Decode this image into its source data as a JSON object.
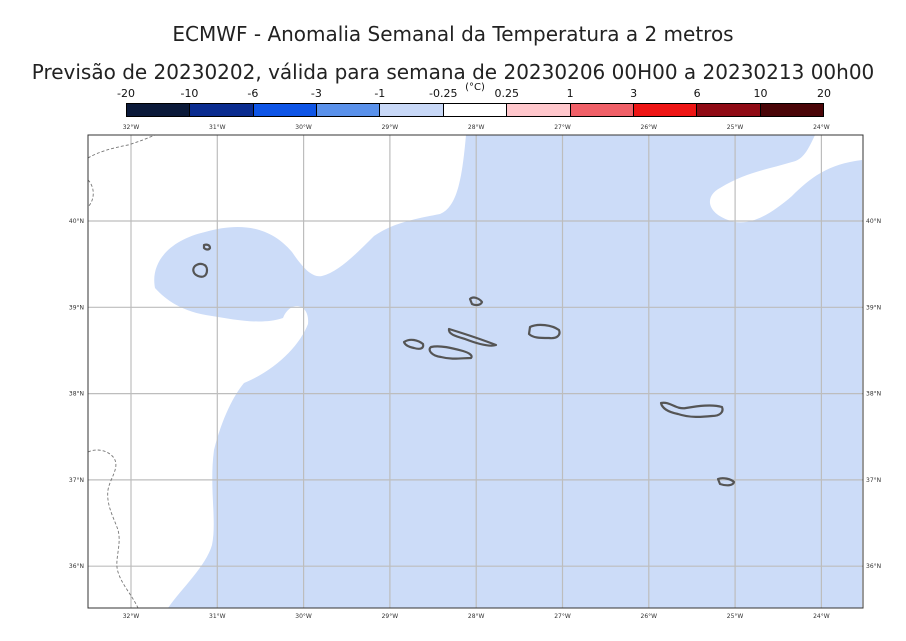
{
  "title_line1": "ECMWF - Anomalia Semanal da Temperatura a 2 metros",
  "title_line2": "Previsão de 20230202, válida para semana de 20230206 00H00 a 20230213 00h00",
  "colorbar": {
    "unit": "(°C)",
    "labels": [
      "-20",
      "-10",
      "-6",
      "-3",
      "-1",
      "-0.25",
      "0.25",
      "1",
      "3",
      "6",
      "10",
      "20"
    ],
    "colors": [
      "#0b1a3a",
      "#0a2c8f",
      "#0e55e6",
      "#5a91ea",
      "#c8d8f7",
      "#ffffff",
      "#ffc7cc",
      "#f06068",
      "#ee1515",
      "#8f0a14",
      "#4a0508"
    ]
  },
  "map": {
    "lon_ticks": [
      "32°W",
      "31°W",
      "30°W",
      "29°W",
      "28°W",
      "27°W",
      "26°W",
      "25°W",
      "24°W"
    ],
    "lat_ticks": [
      "40°N",
      "39°N",
      "38°N",
      "37°N",
      "36°N"
    ],
    "anomaly_fill_color": "#ccdcf8",
    "anomaly_class": "-1 to -0.25",
    "islands": [
      "Flores",
      "Corvo",
      "Graciosa",
      "Terceira",
      "São Jorge",
      "Pico",
      "Faial",
      "São Miguel",
      "Santa Maria"
    ]
  }
}
